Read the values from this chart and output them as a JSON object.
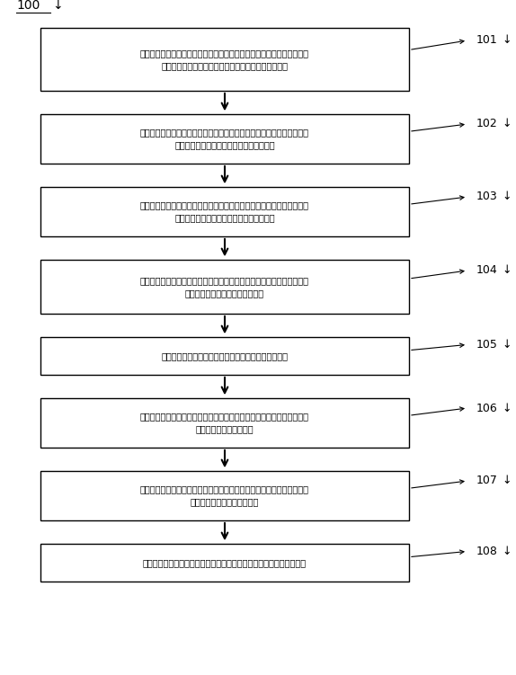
{
  "title_label": "100",
  "background_color": "#ffffff",
  "box_fill_color": "#ffffff",
  "box_edge_color": "#000000",
  "arrow_color": "#000000",
  "text_color": "#000000",
  "label_color": "#000000",
  "font_size": 7.0,
  "title_font_size": 10,
  "label_font_size": 9,
  "boxes": [
    {
      "id": "101",
      "label": "101",
      "text": "获取预设时长内监测设备采集的污染物浓度信息；所述污染物浓度信息包\n括多个污染物浓度数据和每个污染物浓度数据的时间戳"
    },
    {
      "id": "102",
      "label": "102",
      "text": "根据污染物浓度数据的时间戳，计算相邻的两个污染物浓度数据的趋势；\n所述趋势包括升高、持平和降低中的某一种"
    },
    {
      "id": "103",
      "label": "103",
      "text": "根据相邻的两个污染物浓度数据的趋势，计算多个污染物浓度数据中的第\n一升高概率、第一持平概率和第一降低概率"
    },
    {
      "id": "104",
      "label": "104",
      "text": "获取预设时长内的气象条件信息；所述气象条件信息包括与每个污染物浓\n度数据的时间戳相对应的风况数据"
    },
    {
      "id": "105",
      "label": "105",
      "text": "根据风况数据，对风况进行分类，得到风况的多个类别"
    },
    {
      "id": "106",
      "label": "106",
      "text": "计算在每种类别的风况数据下，污染物浓度数据的第二升高概率、第二持\n平概率和第二降低概率；"
    },
    {
      "id": "107",
      "label": "107",
      "text": "计算所述第二升高概率与第一升高概率的第一差値，所述第二降低概率与\n所述第一降低概率的第二差値"
    },
    {
      "id": "108",
      "label": "108",
      "text": "根据所述第一差値和所述第二差値，确定污染物的来源方向和消散方向"
    }
  ],
  "figure_width": 5.74,
  "figure_height": 7.51
}
